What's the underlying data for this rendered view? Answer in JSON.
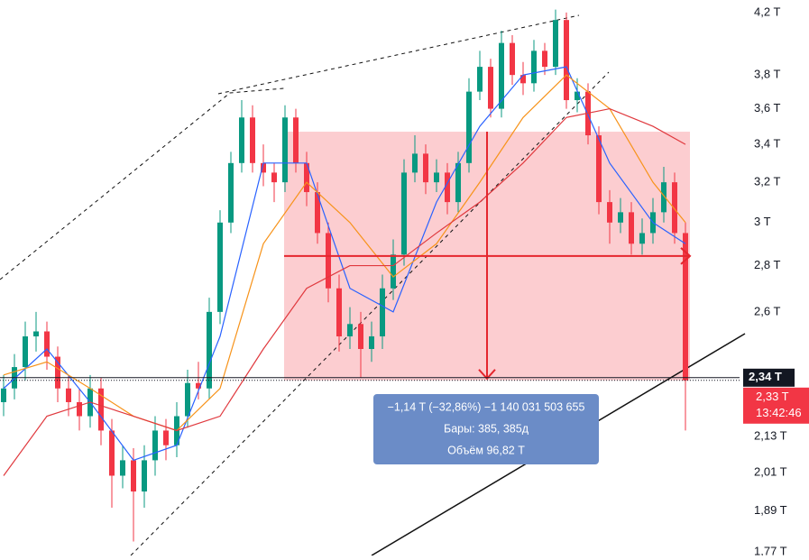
{
  "chart_data": {
    "type": "candlestick",
    "log_scale": true,
    "up_color": "#089981",
    "down_color": "#f23645",
    "ylim": [
      1.76,
      4.285
    ],
    "yticks": [
      {
        "value": 4.2,
        "label": "4,2 T"
      },
      {
        "value": 3.8,
        "label": "3,8 T"
      },
      {
        "value": 3.6,
        "label": "3,6 T"
      },
      {
        "value": 3.4,
        "label": "3,4 T"
      },
      {
        "value": 3.2,
        "label": "3,2 T"
      },
      {
        "value": 3,
        "label": "3 T"
      },
      {
        "value": 2.8,
        "label": "2,8 T"
      },
      {
        "value": 2.6,
        "label": "2,6 T"
      },
      {
        "value": 2.13,
        "label": "2,13 T"
      },
      {
        "value": 2.01,
        "label": "2,01 T"
      },
      {
        "value": 1.89,
        "label": "1,89 T"
      },
      {
        "value": 1.77,
        "label": "1,77 T"
      }
    ],
    "candles": [
      [
        2.25,
        2.35,
        2.2,
        2.3
      ],
      [
        2.3,
        2.43,
        2.26,
        2.38
      ],
      [
        2.38,
        2.56,
        2.33,
        2.5
      ],
      [
        2.5,
        2.6,
        2.44,
        2.52
      ],
      [
        2.52,
        2.56,
        2.37,
        2.42
      ],
      [
        2.42,
        2.46,
        2.25,
        2.3
      ],
      [
        2.3,
        2.35,
        2.2,
        2.25
      ],
      [
        2.25,
        2.3,
        2.15,
        2.2
      ],
      [
        2.2,
        2.35,
        2.16,
        2.3
      ],
      [
        2.3,
        2.34,
        2.1,
        2.15
      ],
      [
        2.15,
        2.19,
        1.9,
        2.0
      ],
      [
        2.0,
        2.1,
        1.96,
        2.05
      ],
      [
        2.05,
        2.09,
        1.8,
        1.95
      ],
      [
        1.95,
        2.1,
        1.9,
        2.05
      ],
      [
        2.05,
        2.2,
        2.0,
        2.15
      ],
      [
        2.15,
        2.19,
        2.05,
        2.1
      ],
      [
        2.1,
        2.25,
        2.06,
        2.2
      ],
      [
        2.2,
        2.37,
        2.16,
        2.32
      ],
      [
        2.32,
        2.4,
        2.26,
        2.3
      ],
      [
        2.3,
        2.66,
        2.26,
        2.6
      ],
      [
        2.6,
        3.06,
        2.55,
        3.0
      ],
      [
        3.0,
        3.36,
        2.95,
        3.3
      ],
      [
        3.3,
        3.65,
        3.25,
        3.55
      ],
      [
        3.55,
        3.62,
        3.25,
        3.3
      ],
      [
        3.3,
        3.4,
        3.18,
        3.25
      ],
      [
        3.25,
        3.3,
        3.1,
        3.2
      ],
      [
        3.2,
        3.62,
        3.15,
        3.55
      ],
      [
        3.55,
        3.6,
        3.25,
        3.3
      ],
      [
        3.3,
        3.36,
        3.08,
        3.15
      ],
      [
        3.15,
        3.2,
        2.9,
        2.95
      ],
      [
        2.95,
        3.0,
        2.64,
        2.7
      ],
      [
        2.7,
        2.76,
        2.44,
        2.5
      ],
      [
        2.5,
        2.62,
        2.45,
        2.55
      ],
      [
        2.55,
        2.6,
        2.34,
        2.45
      ],
      [
        2.45,
        2.56,
        2.4,
        2.5
      ],
      [
        2.5,
        2.76,
        2.45,
        2.7
      ],
      [
        2.7,
        2.92,
        2.65,
        2.85
      ],
      [
        2.85,
        3.32,
        2.8,
        3.25
      ],
      [
        3.25,
        3.45,
        3.2,
        3.35
      ],
      [
        3.35,
        3.4,
        3.14,
        3.2
      ],
      [
        3.2,
        3.32,
        3.15,
        3.25
      ],
      [
        3.25,
        3.3,
        3.04,
        3.1
      ],
      [
        3.1,
        3.36,
        3.05,
        3.3
      ],
      [
        3.3,
        3.78,
        3.25,
        3.7
      ],
      [
        3.7,
        3.95,
        3.65,
        3.85
      ],
      [
        3.85,
        3.9,
        3.55,
        3.6
      ],
      [
        3.6,
        4.08,
        3.55,
        4.0
      ],
      [
        4.0,
        4.05,
        3.74,
        3.8
      ],
      [
        3.8,
        3.88,
        3.68,
        3.75
      ],
      [
        3.75,
        4.02,
        3.7,
        3.95
      ],
      [
        3.95,
        4.0,
        3.8,
        3.85
      ],
      [
        3.85,
        4.22,
        3.8,
        4.15
      ],
      [
        4.15,
        4.2,
        3.6,
        3.65
      ],
      [
        3.65,
        3.78,
        3.58,
        3.7
      ],
      [
        3.7,
        3.75,
        3.4,
        3.45
      ],
      [
        3.45,
        3.5,
        3.04,
        3.1
      ],
      [
        3.1,
        3.16,
        2.9,
        3.0
      ],
      [
        3.0,
        3.12,
        2.95,
        3.05
      ],
      [
        3.05,
        3.1,
        2.85,
        2.9
      ],
      [
        2.9,
        3.02,
        2.85,
        2.95
      ],
      [
        2.95,
        3.12,
        2.9,
        3.05
      ],
      [
        3.05,
        3.28,
        3.0,
        3.2
      ],
      [
        3.2,
        3.25,
        2.9,
        2.95
      ],
      [
        2.95,
        3.0,
        2.15,
        2.33
      ]
    ],
    "ma_x": [
      0,
      4,
      8,
      12,
      16,
      20,
      24,
      28,
      32,
      36,
      40,
      44,
      48,
      52,
      56,
      60,
      63
    ],
    "series": [
      {
        "color": "#2962ff",
        "values": [
          2.3,
          2.45,
          2.25,
          2.05,
          2.1,
          2.5,
          3.3,
          3.3,
          2.7,
          2.6,
          3.1,
          3.5,
          3.8,
          3.85,
          3.3,
          3.0,
          2.9
        ]
      },
      {
        "color": "#f7931a",
        "values": [
          2.35,
          2.4,
          2.3,
          2.2,
          2.15,
          2.3,
          2.9,
          3.2,
          3.0,
          2.75,
          2.9,
          3.2,
          3.55,
          3.8,
          3.6,
          3.2,
          3.0
        ]
      },
      {
        "color": "#e0393e",
        "values": [
          2.0,
          2.2,
          2.25,
          2.2,
          2.15,
          2.2,
          2.45,
          2.7,
          2.8,
          2.8,
          2.95,
          3.1,
          3.3,
          3.55,
          3.6,
          3.5,
          3.4
        ]
      }
    ],
    "crosshair_price": {
      "value": 2.34,
      "label": "2,34 T"
    },
    "last_price": {
      "value": 2.33,
      "label": "2,33 T",
      "time": "13:42:46"
    },
    "measure": {
      "top": 3.47,
      "bottom": 2.33,
      "change": "−1,14 T (−32,86%) −1 140 031 503 655",
      "bars": "Бары: 385, 385д",
      "volume": "Объём 96,82 T"
    }
  }
}
